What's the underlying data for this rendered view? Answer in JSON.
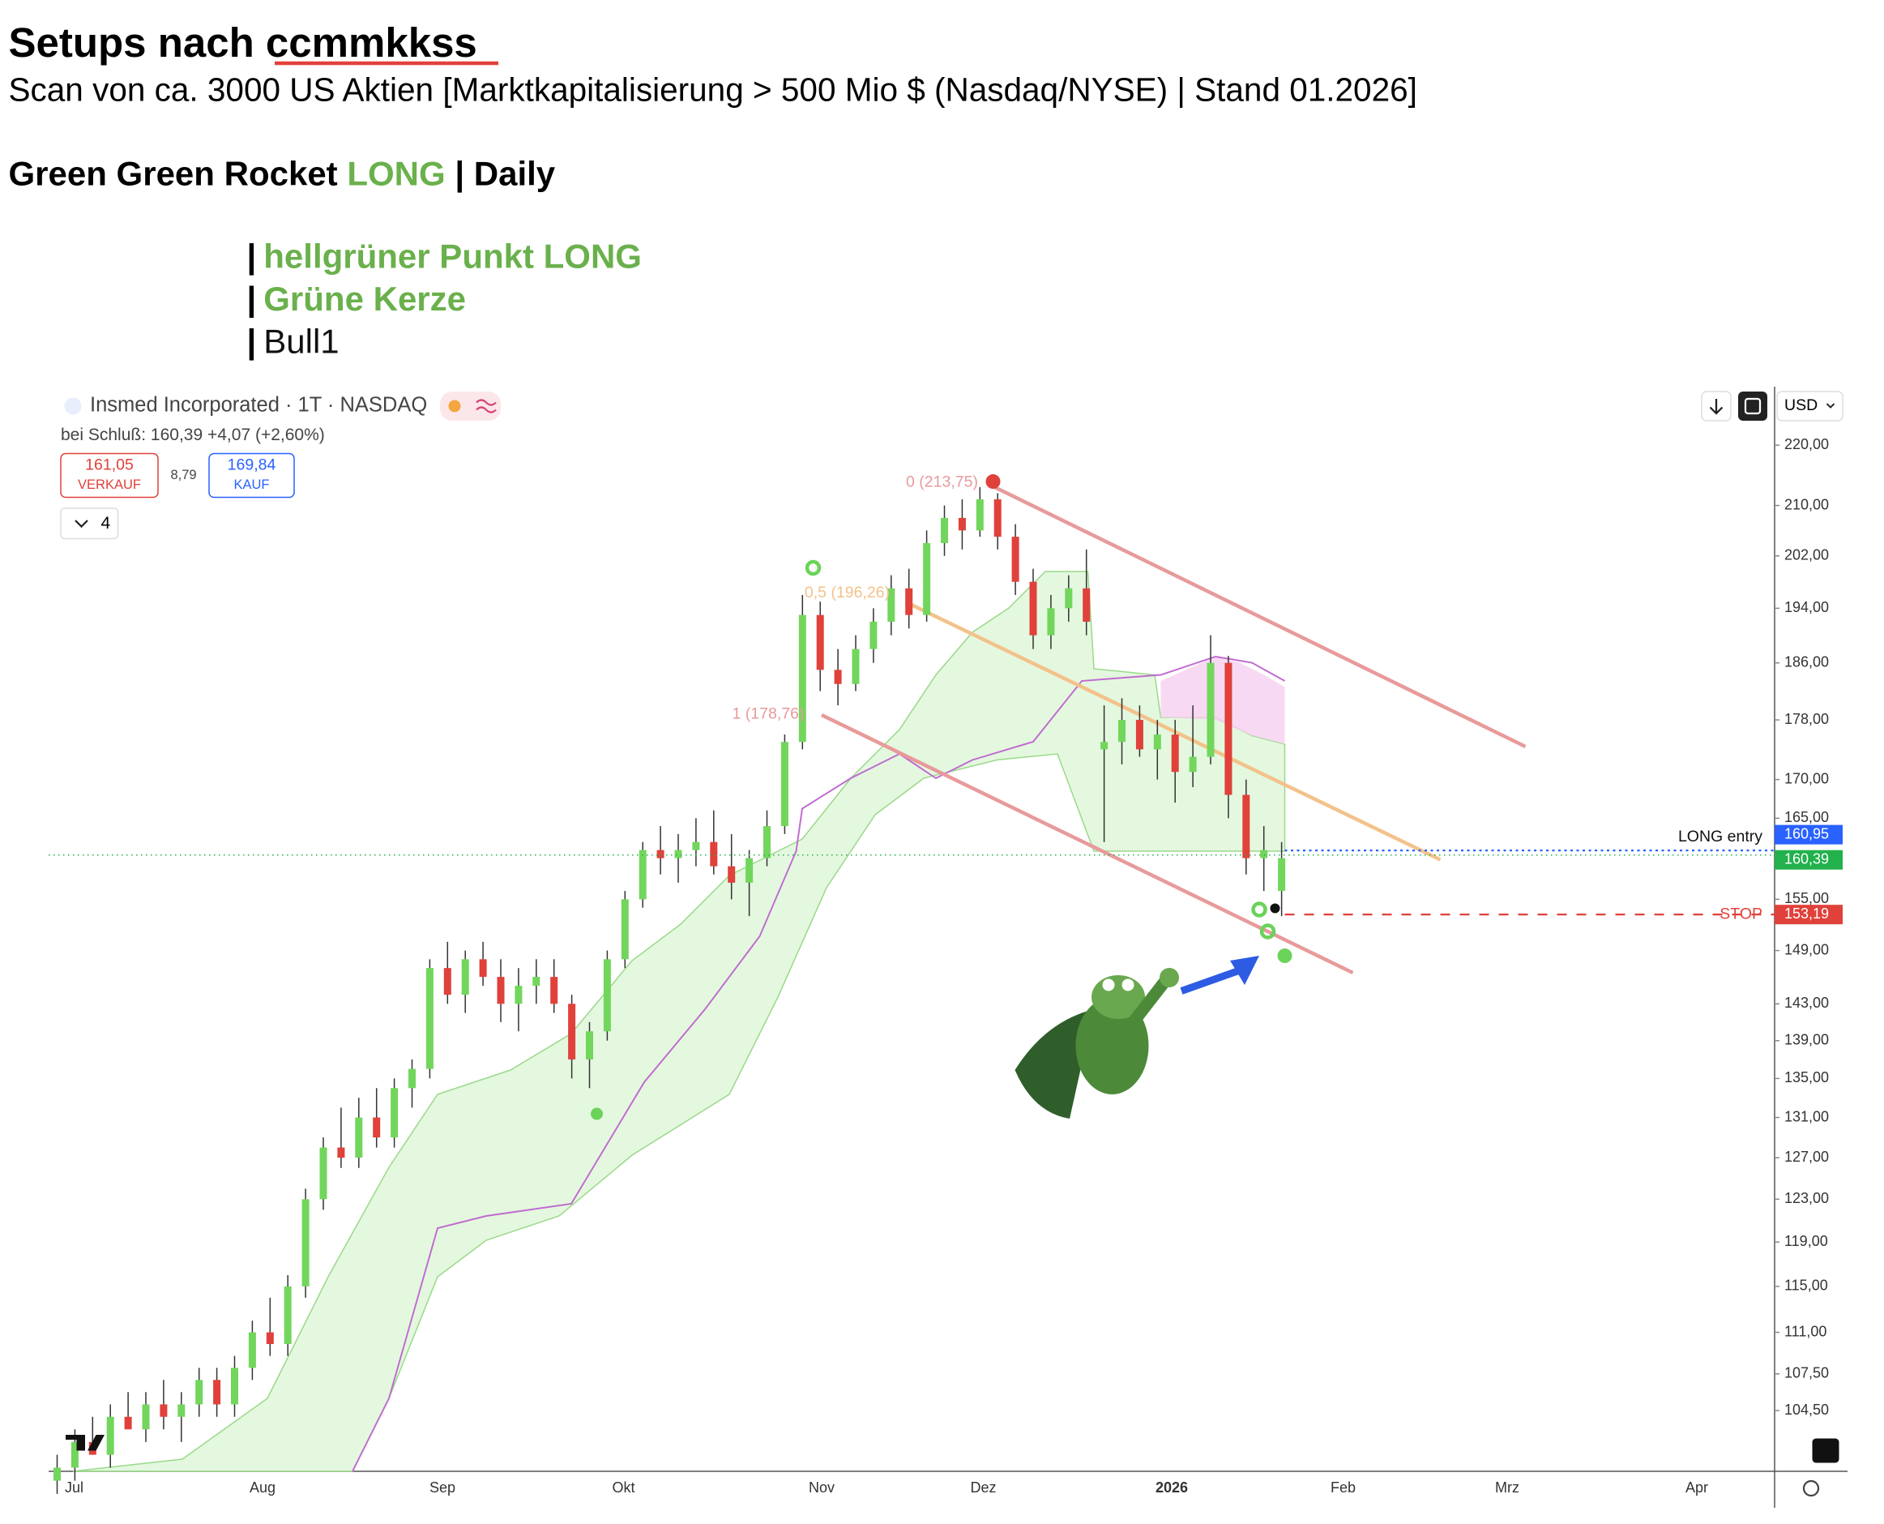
{
  "header": {
    "title_prefix": "Setups nach",
    "title_name": "ccmmkkss",
    "subtitle": "Scan von ca. 3000 US Aktien [Marktkapitalisierung > 500 Mio $ (Nasdaq/NYSE) | Stand 01.2026]",
    "strategy": {
      "name": "Green Green Rocket",
      "direction": "LONG",
      "separator": "|",
      "timeframe": "Daily"
    },
    "bullet": "|",
    "criteria": [
      "hellgrüner Punkt LONG",
      "Grüne Kerze",
      "Bull1"
    ]
  },
  "chart_data": {
    "type": "candlestick",
    "symbol": "Insmed Incorporated · 1T · NASDAQ",
    "close_label": "bei Schluß:",
    "close_price": "160,39",
    "close_change": "+4,07 (+2,60%)",
    "sell": {
      "price": "161,05",
      "label": "VERKAUF"
    },
    "spread": "8,79",
    "buy": {
      "price": "169,84",
      "label": "KAUF"
    },
    "indicator_count": "4",
    "currency": "USD",
    "log_scale": true,
    "ylim": [
      100,
      228
    ],
    "yticks": [
      {
        "value": 220,
        "label": "220,00"
      },
      {
        "value": 210,
        "label": "210,00"
      },
      {
        "value": 202,
        "label": "202,00"
      },
      {
        "value": 194,
        "label": "194,00"
      },
      {
        "value": 186,
        "label": "186,00"
      },
      {
        "value": 178,
        "label": "178,00"
      },
      {
        "value": 170,
        "label": "170,00"
      },
      {
        "value": 165,
        "label": "165,00"
      },
      {
        "value": 155,
        "label": "155,00"
      },
      {
        "value": 149,
        "label": "149,00"
      },
      {
        "value": 143,
        "label": "143,00"
      },
      {
        "value": 139,
        "label": "139,00"
      },
      {
        "value": 135,
        "label": "135,00"
      },
      {
        "value": 131,
        "label": "131,00"
      },
      {
        "value": 127,
        "label": "127,00"
      },
      {
        "value": 123,
        "label": "123,00"
      },
      {
        "value": 119,
        "label": "119,00"
      },
      {
        "value": 115,
        "label": "115,00"
      },
      {
        "value": 111,
        "label": "111,00"
      },
      {
        "value": 107.5,
        "label": "107,50"
      },
      {
        "value": 104.5,
        "label": "104,50"
      }
    ],
    "x_labels": [
      "Jul",
      "Aug",
      "Sep",
      "Okt",
      "Nov",
      "Dez",
      "2026",
      "Feb",
      "Mrz",
      "Apr"
    ],
    "fib_levels": [
      {
        "value": 213.75,
        "label": "0 (213,75)"
      },
      {
        "value": 196.26,
        "label": "0,5 (196,26)"
      },
      {
        "value": 178.76,
        "label": "1 (178,76)"
      }
    ],
    "levels": [
      {
        "name": "LONG entry",
        "value": 160.95,
        "label": "160,95",
        "color": "#2962ff"
      },
      {
        "name": null,
        "value": 160.39,
        "label": "160,39",
        "color": "#22b14c"
      },
      {
        "name": "STOP",
        "value": 153.19,
        "label": "153,19",
        "color": "#e0413a"
      }
    ],
    "up_color": "#72d65c",
    "down_color": "#e0413a",
    "candles": [
      [
        99,
        101,
        98,
        100
      ],
      [
        100,
        103,
        99,
        102
      ],
      [
        102,
        104,
        101,
        101
      ],
      [
        101,
        105,
        100,
        104
      ],
      [
        104,
        106,
        103,
        103
      ],
      [
        103,
        106,
        102,
        105
      ],
      [
        105,
        107,
        103,
        104
      ],
      [
        104,
        106,
        102,
        105
      ],
      [
        105,
        108,
        104,
        107
      ],
      [
        107,
        108,
        104,
        105
      ],
      [
        105,
        109,
        104,
        108
      ],
      [
        108,
        112,
        107,
        111
      ],
      [
        111,
        114,
        109,
        110
      ],
      [
        110,
        116,
        109,
        115
      ],
      [
        115,
        124,
        114,
        123
      ],
      [
        123,
        129,
        122,
        128
      ],
      [
        128,
        132,
        126,
        127
      ],
      [
        127,
        133,
        126,
        131
      ],
      [
        131,
        134,
        128,
        129
      ],
      [
        129,
        135,
        128,
        134
      ],
      [
        134,
        137,
        132,
        136
      ],
      [
        136,
        148,
        135,
        147
      ],
      [
        147,
        150,
        143,
        144
      ],
      [
        144,
        149,
        142,
        148
      ],
      [
        148,
        150,
        145,
        146
      ],
      [
        146,
        148,
        141,
        143
      ],
      [
        143,
        147,
        140,
        145
      ],
      [
        145,
        148,
        143,
        146
      ],
      [
        146,
        148,
        142,
        143
      ],
      [
        143,
        144,
        135,
        137
      ],
      [
        137,
        141,
        134,
        140
      ],
      [
        140,
        149,
        139,
        148
      ],
      [
        148,
        156,
        147,
        155
      ],
      [
        155,
        162,
        154,
        161
      ],
      [
        161,
        164,
        158,
        160
      ],
      [
        160,
        163,
        157,
        161
      ],
      [
        161,
        165,
        159,
        162
      ],
      [
        162,
        166,
        158,
        159
      ],
      [
        159,
        163,
        155,
        157
      ],
      [
        157,
        161,
        153,
        160
      ],
      [
        160,
        166,
        159,
        164
      ],
      [
        164,
        176,
        163,
        175
      ],
      [
        175,
        196,
        174,
        193
      ],
      [
        193,
        195,
        182,
        185
      ],
      [
        185,
        188,
        180,
        183
      ],
      [
        183,
        190,
        182,
        188
      ],
      [
        188,
        194,
        186,
        192
      ],
      [
        192,
        199,
        190,
        197
      ],
      [
        197,
        200,
        191,
        193
      ],
      [
        193,
        206,
        192,
        204
      ],
      [
        204,
        210,
        202,
        208
      ],
      [
        208,
        211,
        203,
        206
      ],
      [
        206,
        213,
        205,
        211
      ],
      [
        211,
        212,
        203,
        205
      ],
      [
        205,
        207,
        196,
        198
      ],
      [
        198,
        200,
        188,
        190
      ],
      [
        190,
        196,
        188,
        194
      ],
      [
        194,
        199,
        192,
        197
      ],
      [
        197,
        203,
        190,
        192
      ],
      [
        174,
        180,
        162,
        175
      ],
      [
        175,
        181,
        172,
        178
      ],
      [
        178,
        180,
        173,
        174
      ],
      [
        174,
        178,
        170,
        176
      ],
      [
        176,
        178,
        167,
        171
      ],
      [
        171,
        180,
        169,
        173
      ],
      [
        173,
        190,
        172,
        186
      ],
      [
        186,
        187,
        165,
        168
      ],
      [
        168,
        170,
        158,
        160
      ],
      [
        160,
        164,
        156,
        161
      ],
      [
        156,
        162,
        153,
        160
      ]
    ]
  }
}
